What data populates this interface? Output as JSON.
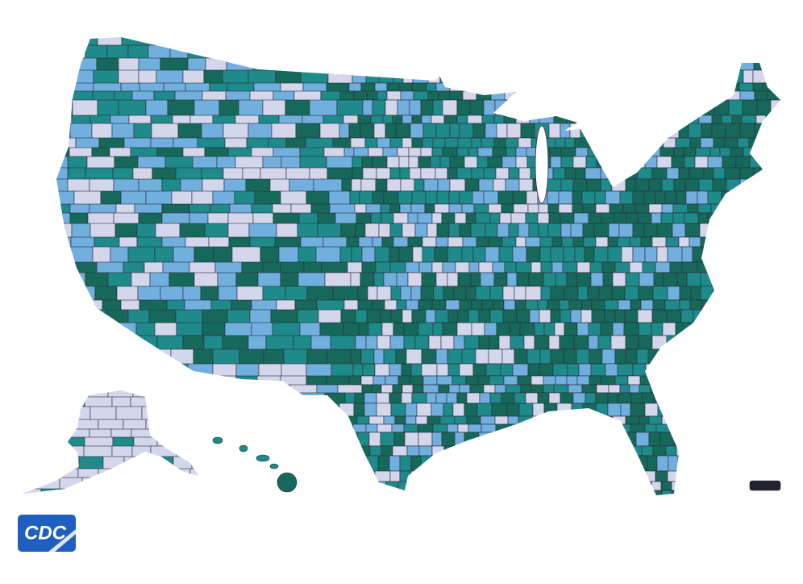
{
  "logo": {
    "text": "CDC"
  }
}
